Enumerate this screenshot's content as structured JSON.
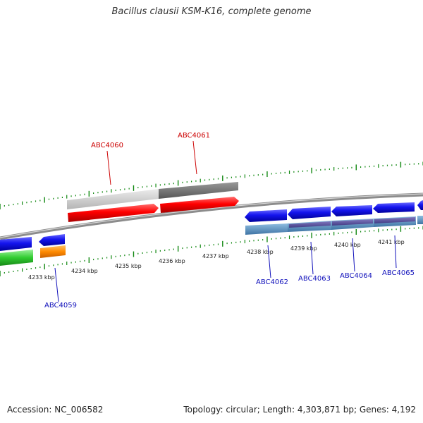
{
  "title": "Bacillus clausii KSM-K16, complete genome",
  "footer": {
    "accession": "Accession: NC_006582",
    "summary": "Topology: circular; Length: 4,303,871 bp; Genes: 4,192"
  },
  "colors": {
    "plus_strand": "#ee0000",
    "minus_strand": "#0000dd",
    "rna": "#2ec82e",
    "highlight": "#ff8c00",
    "label_plus": "#cc0000",
    "label_minus": "#1010bb",
    "tick": "#118811",
    "backbone": "#999999"
  },
  "ruler": {
    "unit": "kbp",
    "labels": [
      "4233 kbp",
      "4234 kbp",
      "4235 kbp",
      "4236 kbp",
      "4237 kbp",
      "4238 kbp",
      "4239 kbp",
      "4240 kbp",
      "4241 kbp"
    ]
  },
  "genes": [
    {
      "id": "ABC4059",
      "strand": "minus"
    },
    {
      "id": "ABC4060",
      "strand": "plus"
    },
    {
      "id": "ABC4061",
      "strand": "plus"
    },
    {
      "id": "ABC4062",
      "strand": "minus"
    },
    {
      "id": "ABC4063",
      "strand": "minus"
    },
    {
      "id": "ABC4064",
      "strand": "minus"
    },
    {
      "id": "ABC4065",
      "strand": "minus"
    }
  ]
}
